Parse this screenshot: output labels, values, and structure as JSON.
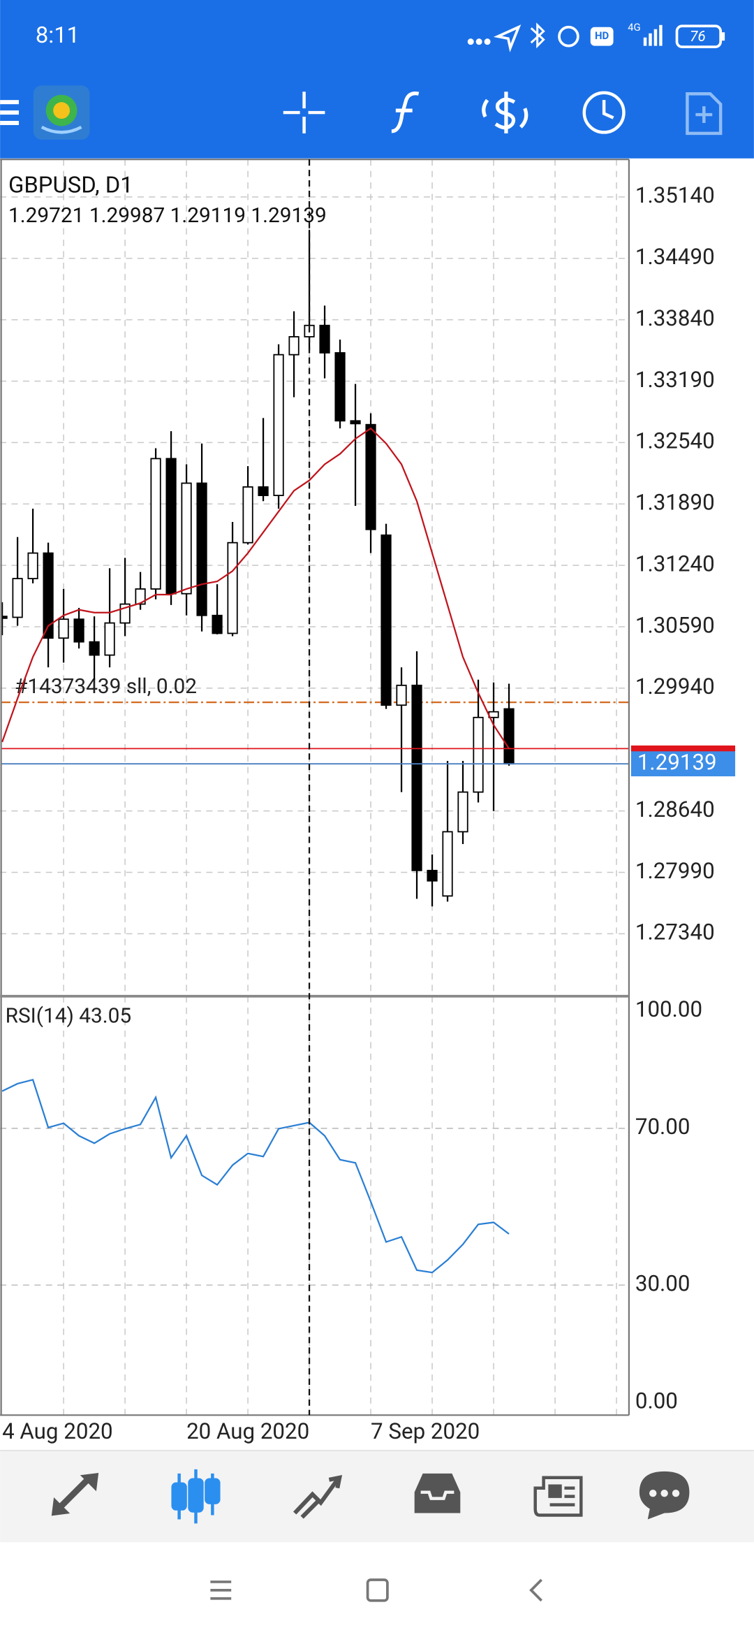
{
  "status_bar": {
    "time": "8:11",
    "network": "4G",
    "hd": "HD",
    "battery": "76"
  },
  "chart_data": [
    {
      "type": "candlestick",
      "title": "GBPUSD, D1",
      "subtitle": "1.29721 1.29987 1.29119 1.29139",
      "categories": [
        "4 Aug 2020",
        null,
        null,
        null,
        null,
        null,
        null,
        null,
        null,
        null,
        null,
        null,
        "20 Aug 2020",
        null,
        null,
        null,
        null,
        null,
        null,
        null,
        null,
        null,
        null,
        null,
        "7 Sep 2020",
        null,
        null,
        null,
        null,
        null,
        null,
        null,
        null,
        null
      ],
      "open": [
        1.307,
        1.3069,
        1.311,
        1.3137,
        1.3047,
        1.3067,
        1.3043,
        1.3029,
        1.3063,
        1.3083,
        1.3099,
        1.3237,
        1.3094,
        1.3211,
        1.3071,
        1.3052,
        1.3148,
        1.3207,
        1.3198,
        1.3347,
        1.3366,
        1.3378,
        1.3349,
        1.3277,
        1.3273,
        1.3156,
        1.2976,
        1.2997,
        1.2801,
        1.2774,
        1.2842,
        1.2884,
        1.2963,
        1.29721
      ],
      "high": [
        1.3085,
        1.3154,
        1.3184,
        1.3148,
        1.3099,
        1.3079,
        1.307,
        1.3121,
        1.3132,
        1.3117,
        1.3248,
        1.3266,
        1.3231,
        1.3253,
        1.3104,
        1.317,
        1.3229,
        1.328,
        1.3358,
        1.3393,
        1.3479,
        1.3399,
        1.3363,
        1.3316,
        1.3285,
        1.3168,
        1.3016,
        1.3033,
        1.2818,
        1.2917,
        1.2917,
        1.3003,
        1.3,
        1.29987
      ],
      "low": [
        1.305,
        1.306,
        1.3105,
        1.3016,
        1.3021,
        1.3036,
        1.3003,
        1.3016,
        1.3049,
        1.3077,
        1.3088,
        1.3082,
        1.3071,
        1.3054,
        1.3051,
        1.3049,
        1.3146,
        1.3192,
        1.3184,
        1.3302,
        1.3352,
        1.3322,
        1.3269,
        1.3187,
        1.3137,
        1.2972,
        1.2884,
        1.2771,
        1.2763,
        1.2768,
        1.2829,
        1.2873,
        1.2864,
        1.29119
      ],
      "close": [
        1.3068,
        1.311,
        1.3137,
        1.3047,
        1.3067,
        1.3043,
        1.3029,
        1.3063,
        1.3083,
        1.3099,
        1.3237,
        1.3094,
        1.3211,
        1.3071,
        1.3052,
        1.3148,
        1.3207,
        1.3198,
        1.3347,
        1.3366,
        1.3378,
        1.3349,
        1.3277,
        1.3274,
        1.3162,
        1.2976,
        1.2997,
        1.2801,
        1.279,
        1.2842,
        1.2884,
        1.2963,
        1.2969,
        1.29139
      ],
      "up_color": "#ffffff",
      "down_color": "#000000",
      "ma": {
        "color": "#c0141c",
        "values": [
          1.2937,
          1.2983,
          1.3027,
          1.306,
          1.3071,
          1.3077,
          1.3074,
          1.3074,
          1.3079,
          1.3084,
          1.3093,
          1.3093,
          1.3099,
          1.3104,
          1.3107,
          1.3118,
          1.3137,
          1.3159,
          1.3181,
          1.3203,
          1.3214,
          1.3231,
          1.3242,
          1.3258,
          1.3269,
          1.3253,
          1.3231,
          1.3192,
          1.3137,
          1.3082,
          1.3027,
          1.2989,
          1.2955,
          1.293
        ]
      },
      "last_price": 1.29139,
      "last_price_color": "#3d8ee8",
      "ask_price": 1.293,
      "ask_color": "#e0141c",
      "order": {
        "label": "#14373439 sll, 0.02",
        "value": 1.2979,
        "color": "#d2691e"
      },
      "crosshair": 20,
      "ylim": [
        1.2669,
        1.35526
      ],
      "yticks": [
        {
          "value": 1.3514,
          "label": "1.35140"
        },
        {
          "value": 1.3449,
          "label": "1.34490"
        },
        {
          "value": 1.3384,
          "label": "1.33840"
        },
        {
          "value": 1.3319,
          "label": "1.33190"
        },
        {
          "value": 1.3254,
          "label": "1.32540"
        },
        {
          "value": 1.3189,
          "label": "1.31890"
        },
        {
          "value": 1.3124,
          "label": "1.31240"
        },
        {
          "value": 1.3059,
          "label": "1.30590"
        },
        {
          "value": 1.2994,
          "label": "1.29940"
        },
        {
          "value": 1.2864,
          "label": "1.28640"
        },
        {
          "value": 1.2799,
          "label": "1.27990"
        },
        {
          "value": 1.2734,
          "label": "1.27340"
        }
      ],
      "grid": true
    },
    {
      "type": "line",
      "title": "RSI(14) 43.05",
      "color": "#2a7fd4",
      "values": [
        79.5,
        81.4,
        82.4,
        70.2,
        71.3,
        68.1,
        66.2,
        68.6,
        69.9,
        71.0,
        77.9,
        62.5,
        68.1,
        58.0,
        55.6,
        60.6,
        63.6,
        62.8,
        69.9,
        70.7,
        71.5,
        68.1,
        62.0,
        61.2,
        51.3,
        41.0,
        42.3,
        33.8,
        33.2,
        36.4,
        40.4,
        45.5,
        46.0,
        43.05
      ],
      "ylim": [
        0,
        100
      ],
      "yticks": [
        {
          "value": 100,
          "label": "100.00"
        },
        {
          "value": 70,
          "label": "70.00"
        },
        {
          "value": 30,
          "label": "30.00"
        },
        {
          "value": 0,
          "label": "0.00"
        }
      ],
      "grid": true
    }
  ]
}
